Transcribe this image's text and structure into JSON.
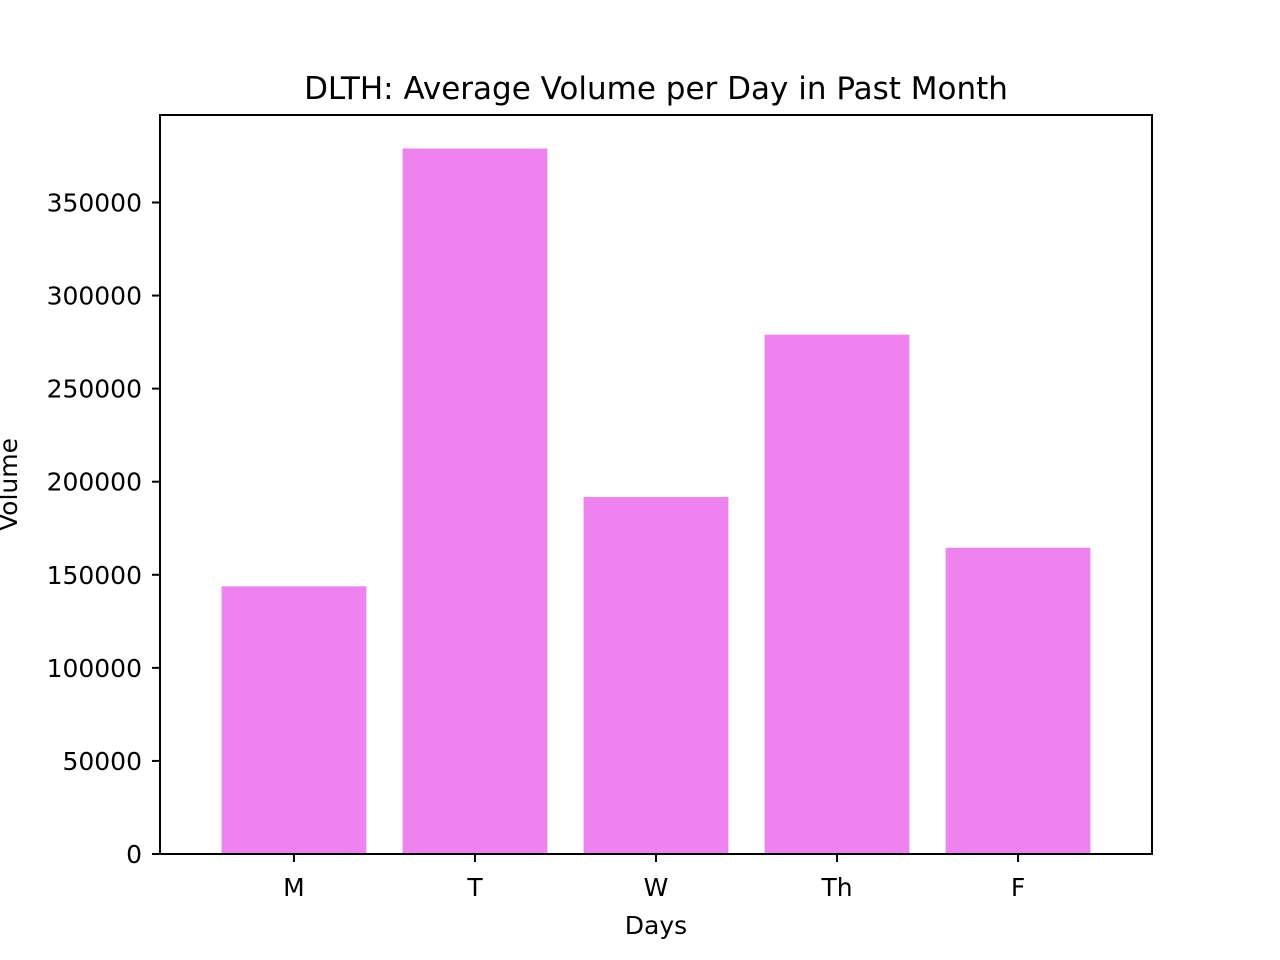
{
  "chart_data": {
    "type": "bar",
    "title": "DLTH: Average Volume per Day in Past Month",
    "xlabel": "Days",
    "ylabel": "Volume",
    "categories": [
      "M",
      "T",
      "W",
      "Th",
      "F"
    ],
    "values": [
      143800,
      379000,
      191800,
      279000,
      164500
    ],
    "ylim": [
      0,
      397000
    ],
    "yticks": [
      0,
      50000,
      100000,
      150000,
      200000,
      250000,
      300000,
      350000
    ],
    "ytick_labels": [
      "0",
      "50000",
      "100000",
      "150000",
      "200000",
      "250000",
      "300000",
      "350000"
    ],
    "bar_color": "#ee82ee",
    "grid": false,
    "legend": "none"
  }
}
